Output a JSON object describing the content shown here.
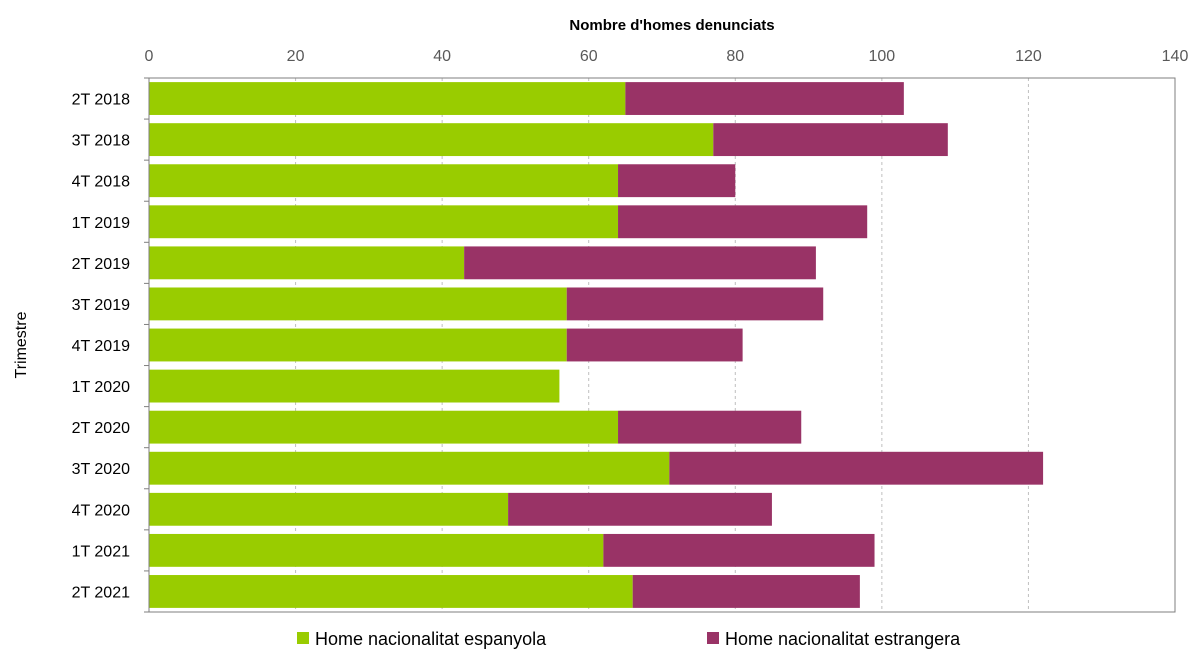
{
  "chart_data": {
    "type": "bar",
    "orientation": "horizontal",
    "stacked": true,
    "xlabel": "Nombre d'homes denunciats",
    "ylabel": "Trimestre",
    "xlim": [
      0,
      140
    ],
    "xticks": [
      "0",
      "20",
      "40",
      "60",
      "80",
      "100",
      "120",
      "140"
    ],
    "x_axis_position": "top",
    "grid": "vertical-dashed",
    "legend_position": "bottom",
    "categories": [
      "2T 2018",
      "3T 2018",
      "4T 2018",
      "1T 2019",
      "2T 2019",
      "3T 2019",
      "4T 2019",
      "1T 2020",
      "2T 2020",
      "3T 2020",
      "4T 2020",
      "1T 2021",
      "2T 2021"
    ],
    "series": [
      {
        "name": "Home nacionalitat espanyola",
        "color": "#99cc00",
        "values": [
          65,
          77,
          64,
          64,
          43,
          57,
          57,
          56,
          64,
          71,
          49,
          62,
          66
        ]
      },
      {
        "name": "Home nacionalitat estrangera",
        "color": "#993366",
        "values": [
          38,
          32,
          16,
          34,
          48,
          35,
          24,
          0,
          25,
          51,
          36,
          37,
          31
        ]
      }
    ]
  }
}
